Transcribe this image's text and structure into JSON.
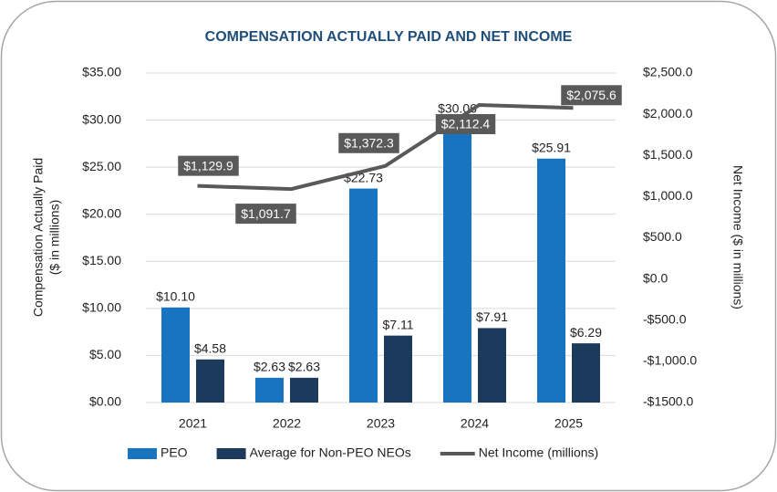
{
  "chart_data": {
    "type": "bar",
    "title": "COMPENSATION ACTUALLY PAID AND NET INCOME",
    "categories": [
      "2021",
      "2022",
      "2023",
      "2024",
      "2025"
    ],
    "series": [
      {
        "name": "PEO",
        "type": "bar",
        "color": "#1874c1",
        "values": [
          10.1,
          2.63,
          22.73,
          30.06,
          25.91
        ],
        "value_labels": [
          "$10.10",
          "$2.63",
          "$22.73",
          "$30.06",
          "$25.91"
        ]
      },
      {
        "name": "Average for Non-PEO NEOs",
        "type": "bar",
        "color": "#1b3a5c",
        "values": [
          4.58,
          2.63,
          7.11,
          7.91,
          6.29
        ],
        "value_labels": [
          "$4.58",
          "$2.63",
          "$7.11",
          "$7.91",
          "$6.29"
        ]
      },
      {
        "name": "Net Income (millions)",
        "type": "line",
        "axis": "y2",
        "color": "#595959",
        "values": [
          1129.9,
          1091.7,
          1372.3,
          2112.4,
          2075.6
        ],
        "value_labels": [
          "$1,129.9",
          "$1,091.7",
          "$1,372.3",
          "$2,112.4",
          "$2,075.6"
        ]
      }
    ],
    "y_label": [
      "Compensation Actually Paid",
      "($ in millions)"
    ],
    "y2_label": "Net Income ($ in millions)",
    "ylim": [
      0,
      35
    ],
    "yticks": [
      {
        "value": 0,
        "label": "$0.00"
      },
      {
        "value": 5,
        "label": "$5.00"
      },
      {
        "value": 10,
        "label": "$10.00"
      },
      {
        "value": 15,
        "label": "$15.00"
      },
      {
        "value": 20,
        "label": "$20.00"
      },
      {
        "value": 25,
        "label": "$25.00"
      },
      {
        "value": 30,
        "label": "$30.00"
      },
      {
        "value": 35,
        "label": "$35.00"
      }
    ],
    "y2lim": [
      -1500,
      2500
    ],
    "y2ticks": [
      {
        "value": -1500,
        "label": "-$1500.0"
      },
      {
        "value": -1000,
        "label": "-$1,000.0"
      },
      {
        "value": -500,
        "label": "-$500.0"
      },
      {
        "value": 0,
        "label": "$0.0"
      },
      {
        "value": 500,
        "label": "$500.0"
      },
      {
        "value": 1000,
        "label": "$1,000.0"
      },
      {
        "value": 1500,
        "label": "$1,500.0"
      },
      {
        "value": 2000,
        "label": "$2,000.0"
      },
      {
        "value": 2500,
        "label": "$2,500.0"
      }
    ],
    "grid": true,
    "legend": "bottom"
  }
}
